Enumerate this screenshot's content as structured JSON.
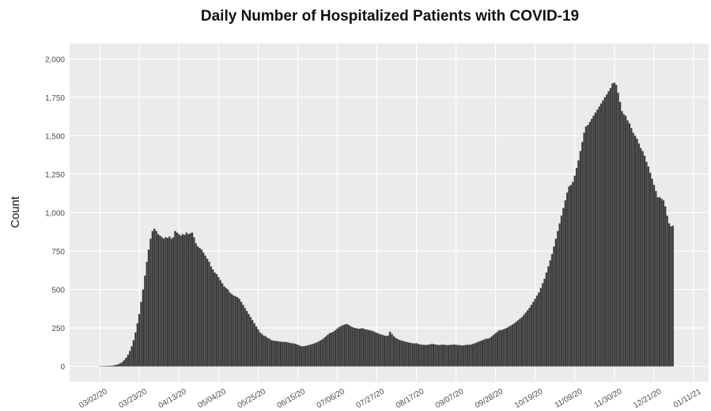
{
  "chart_data": {
    "type": "bar",
    "title": "Daily Number of Hospitalized Patients with COVID-19",
    "y_label": "Count",
    "color": "#3a3a3a",
    "grid": true,
    "xlim": [
      "02/15/20",
      "01/19/21"
    ],
    "xticks": [
      "03/02/20",
      "03/23/20",
      "04/13/20",
      "05/04/20",
      "05/25/20",
      "06/15/20",
      "07/06/20",
      "07/27/20",
      "08/17/20",
      "09/07/20",
      "09/28/20",
      "10/19/20",
      "11/09/20",
      "11/30/20",
      "12/21/20",
      "01/11/21"
    ],
    "ylim": [
      -100,
      2100
    ],
    "yticks": [
      0,
      250,
      500,
      750,
      {
        "value": 1000,
        "label": "1,000"
      },
      {
        "value": 1250,
        "label": "1,250"
      },
      {
        "value": 1500,
        "label": "1,500"
      },
      {
        "value": 1750,
        "label": "1,750"
      },
      {
        "value": 2000,
        "label": "2,000"
      }
    ],
    "x": [
      "03/02/20",
      "03/03/20",
      "03/04/20",
      "03/05/20",
      "03/06/20",
      "03/07/20",
      "03/08/20",
      "03/09/20",
      "03/10/20",
      "03/11/20",
      "03/12/20",
      "03/13/20",
      "03/14/20",
      "03/15/20",
      "03/16/20",
      "03/17/20",
      "03/18/20",
      "03/19/20",
      "03/20/20",
      "03/21/20",
      "03/22/20",
      "03/23/20",
      "03/24/20",
      "03/25/20",
      "03/26/20",
      "03/27/20",
      "03/28/20",
      "03/29/20",
      "03/30/20",
      "03/31/20",
      "04/01/20",
      "04/02/20",
      "04/03/20",
      "04/04/20",
      "04/05/20",
      "04/06/20",
      "04/07/20",
      "04/08/20",
      "04/09/20",
      "04/10/20",
      "04/11/20",
      "04/12/20",
      "04/13/20",
      "04/14/20",
      "04/15/20",
      "04/16/20",
      "04/17/20",
      "04/18/20",
      "04/19/20",
      "04/20/20",
      "04/21/20",
      "04/22/20",
      "04/23/20",
      "04/24/20",
      "04/25/20",
      "04/26/20",
      "04/27/20",
      "04/28/20",
      "04/29/20",
      "04/30/20",
      "05/01/20",
      "05/02/20",
      "05/03/20",
      "05/04/20",
      "05/05/20",
      "05/06/20",
      "05/07/20",
      "05/08/20",
      "05/09/20",
      "05/10/20",
      "05/11/20",
      "05/12/20",
      "05/13/20",
      "05/14/20",
      "05/15/20",
      "05/16/20",
      "05/17/20",
      "05/18/20",
      "05/19/20",
      "05/20/20",
      "05/21/20",
      "05/22/20",
      "05/23/20",
      "05/24/20",
      "05/25/20",
      "05/26/20",
      "05/27/20",
      "05/28/20",
      "05/29/20",
      "05/30/20",
      "05/31/20",
      "06/01/20",
      "06/02/20",
      "06/03/20",
      "06/04/20",
      "06/05/20",
      "06/06/20",
      "06/07/20",
      "06/08/20",
      "06/09/20",
      "06/10/20",
      "06/11/20",
      "06/12/20",
      "06/13/20",
      "06/14/20",
      "06/15/20",
      "06/16/20",
      "06/17/20",
      "06/18/20",
      "06/19/20",
      "06/20/20",
      "06/21/20",
      "06/22/20",
      "06/23/20",
      "06/24/20",
      "06/25/20",
      "06/26/20",
      "06/27/20",
      "06/28/20",
      "06/29/20",
      "06/30/20",
      "07/01/20",
      "07/02/20",
      "07/03/20",
      "07/04/20",
      "07/05/20",
      "07/06/20",
      "07/07/20",
      "07/08/20",
      "07/09/20",
      "07/10/20",
      "07/11/20",
      "07/12/20",
      "07/13/20",
      "07/14/20",
      "07/15/20",
      "07/16/20",
      "07/17/20",
      "07/18/20",
      "07/19/20",
      "07/20/20",
      "07/21/20",
      "07/22/20",
      "07/23/20",
      "07/24/20",
      "07/25/20",
      "07/26/20",
      "07/27/20",
      "07/28/20",
      "07/29/20",
      "07/30/20",
      "07/31/20",
      "08/01/20",
      "08/02/20",
      "08/03/20",
      "08/04/20",
      "08/05/20",
      "08/06/20",
      "08/07/20",
      "08/08/20",
      "08/09/20",
      "08/10/20",
      "08/11/20",
      "08/12/20",
      "08/13/20",
      "08/14/20",
      "08/15/20",
      "08/16/20",
      "08/17/20",
      "08/18/20",
      "08/19/20",
      "08/20/20",
      "08/21/20",
      "08/22/20",
      "08/23/20",
      "08/24/20",
      "08/25/20",
      "08/26/20",
      "08/27/20",
      "08/28/20",
      "08/29/20",
      "08/30/20",
      "08/31/20",
      "09/01/20",
      "09/02/20",
      "09/03/20",
      "09/04/20",
      "09/05/20",
      "09/06/20",
      "09/07/20",
      "09/08/20",
      "09/09/20",
      "09/10/20",
      "09/11/20",
      "09/12/20",
      "09/13/20",
      "09/14/20",
      "09/15/20",
      "09/16/20",
      "09/17/20",
      "09/18/20",
      "09/19/20",
      "09/20/20",
      "09/21/20",
      "09/22/20",
      "09/23/20",
      "09/24/20",
      "09/25/20",
      "09/26/20",
      "09/27/20",
      "09/28/20",
      "09/29/20",
      "09/30/20",
      "10/01/20",
      "10/02/20",
      "10/03/20",
      "10/04/20",
      "10/05/20",
      "10/06/20",
      "10/07/20",
      "10/08/20",
      "10/09/20",
      "10/10/20",
      "10/11/20",
      "10/12/20",
      "10/13/20",
      "10/14/20",
      "10/15/20",
      "10/16/20",
      "10/17/20",
      "10/18/20",
      "10/19/20",
      "10/20/20",
      "10/21/20",
      "10/22/20",
      "10/23/20",
      "10/24/20",
      "10/25/20",
      "10/26/20",
      "10/27/20",
      "10/28/20",
      "10/29/20",
      "10/30/20",
      "10/31/20",
      "11/01/20",
      "11/02/20",
      "11/03/20",
      "11/04/20",
      "11/05/20",
      "11/06/20",
      "11/07/20",
      "11/08/20",
      "11/09/20",
      "11/10/20",
      "11/11/20",
      "11/12/20",
      "11/13/20",
      "11/14/20",
      "11/15/20",
      "11/16/20",
      "11/17/20",
      "11/18/20",
      "11/19/20",
      "11/20/20",
      "11/21/20",
      "11/22/20",
      "11/23/20",
      "11/24/20",
      "11/25/20",
      "11/26/20",
      "11/27/20",
      "11/28/20",
      "11/29/20",
      "11/30/20",
      "12/01/20",
      "12/02/20",
      "12/03/20",
      "12/04/20",
      "12/05/20",
      "12/06/20",
      "12/07/20",
      "12/08/20",
      "12/09/20",
      "12/10/20",
      "12/11/20",
      "12/12/20",
      "12/13/20",
      "12/14/20",
      "12/15/20",
      "12/16/20",
      "12/17/20",
      "12/18/20",
      "12/19/20",
      "12/20/20",
      "12/21/20",
      "12/22/20",
      "12/23/20",
      "12/24/20",
      "12/25/20",
      "12/26/20",
      "12/27/20",
      "12/28/20",
      "12/29/20",
      "12/30/20",
      "12/31/20"
    ],
    "values": [
      1,
      1,
      2,
      2,
      3,
      3,
      4,
      5,
      8,
      10,
      14,
      20,
      28,
      40,
      55,
      75,
      100,
      130,
      170,
      220,
      280,
      340,
      420,
      500,
      590,
      680,
      760,
      830,
      880,
      895,
      880,
      860,
      850,
      840,
      830,
      840,
      835,
      845,
      830,
      840,
      880,
      870,
      860,
      850,
      860,
      855,
      870,
      860,
      865,
      870,
      840,
      800,
      780,
      770,
      760,
      740,
      720,
      700,
      680,
      650,
      630,
      610,
      600,
      580,
      560,
      540,
      520,
      510,
      500,
      480,
      470,
      460,
      455,
      450,
      440,
      420,
      400,
      380,
      360,
      340,
      320,
      300,
      280,
      260,
      240,
      220,
      210,
      200,
      195,
      185,
      180,
      170,
      168,
      165,
      165,
      162,
      160,
      160,
      158,
      158,
      155,
      152,
      150,
      148,
      145,
      140,
      135,
      130,
      130,
      132,
      135,
      138,
      142,
      145,
      150,
      155,
      160,
      168,
      175,
      185,
      195,
      205,
      215,
      220,
      225,
      235,
      245,
      255,
      262,
      268,
      272,
      275,
      270,
      262,
      255,
      250,
      248,
      245,
      245,
      248,
      245,
      240,
      238,
      235,
      232,
      228,
      222,
      218,
      212,
      208,
      205,
      200,
      198,
      200,
      225,
      210,
      195,
      185,
      178,
      172,
      168,
      165,
      160,
      158,
      155,
      152,
      150,
      148,
      150,
      145,
      142,
      140,
      140,
      138,
      140,
      142,
      145,
      145,
      142,
      140,
      138,
      140,
      140,
      140,
      138,
      138,
      140,
      140,
      142,
      140,
      138,
      138,
      136,
      136,
      138,
      140,
      140,
      142,
      145,
      150,
      155,
      160,
      165,
      170,
      175,
      180,
      180,
      185,
      195,
      205,
      215,
      225,
      235,
      235,
      240,
      245,
      250,
      258,
      265,
      272,
      280,
      290,
      300,
      310,
      320,
      335,
      350,
      365,
      380,
      400,
      420,
      440,
      460,
      480,
      510,
      540,
      570,
      610,
      650,
      690,
      730,
      780,
      830,
      880,
      930,
      980,
      1030,
      1080,
      1130,
      1170,
      1180,
      1200,
      1240,
      1290,
      1340,
      1400,
      1460,
      1520,
      1560,
      1570,
      1590,
      1610,
      1630,
      1650,
      1670,
      1690,
      1710,
      1730,
      1750,
      1770,
      1790,
      1810,
      1840,
      1845,
      1830,
      1780,
      1720,
      1660,
      1640,
      1630,
      1600,
      1580,
      1550,
      1520,
      1500,
      1480,
      1450,
      1420,
      1400,
      1370,
      1330,
      1300,
      1260,
      1220,
      1180,
      1140,
      1100,
      1100,
      1090,
      1080,
      1040,
      980,
      930,
      910,
      915
    ]
  }
}
